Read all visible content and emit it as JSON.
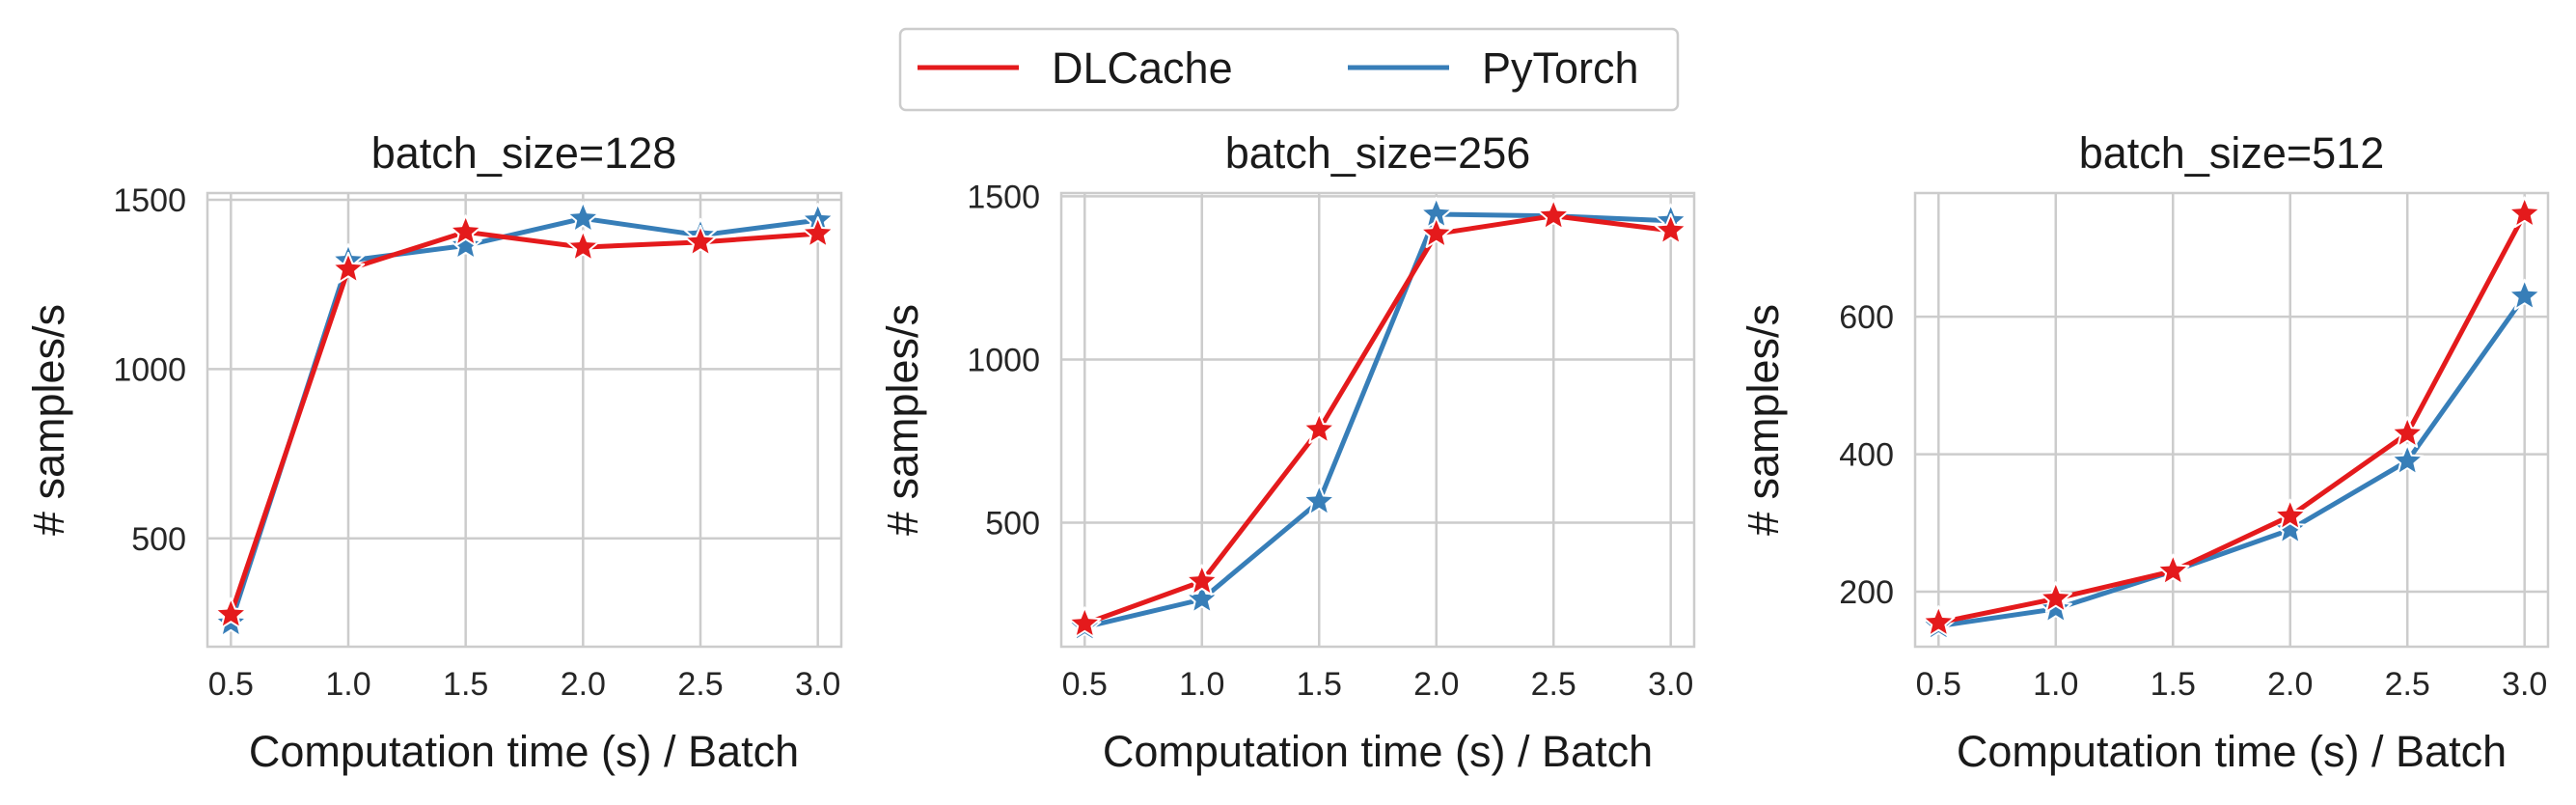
{
  "legend": {
    "entries": [
      {
        "name": "DLCache",
        "color": "#e41a1c"
      },
      {
        "name": "PyTorch",
        "color": "#377eb8"
      }
    ]
  },
  "chart_data": [
    {
      "type": "line",
      "title": "batch_size=128",
      "xlabel": "Computation time (s) / Batch",
      "ylabel": "# samples/s",
      "x": [
        0.5,
        1.0,
        1.5,
        2.0,
        2.5,
        3.0
      ],
      "xlim": [
        0.4,
        3.1
      ],
      "ylim": [
        180,
        1520
      ],
      "xticks": [
        "0.5",
        "1.0",
        "1.5",
        "2.0",
        "2.5",
        "3.0"
      ],
      "yticks": [
        500,
        1000,
        1500
      ],
      "grid": true,
      "marker": "star",
      "series": [
        {
          "name": "DLCache",
          "values": [
            275,
            1295,
            1405,
            1360,
            1375,
            1400
          ]
        },
        {
          "name": "PyTorch",
          "values": [
            250,
            1320,
            1365,
            1445,
            1395,
            1440
          ]
        }
      ]
    },
    {
      "type": "line",
      "title": "batch_size=256",
      "xlabel": "Computation time (s) / Batch",
      "ylabel": "# samples/s",
      "x": [
        0.5,
        1.0,
        1.5,
        2.0,
        2.5,
        3.0
      ],
      "xlim": [
        0.4,
        3.1
      ],
      "ylim": [
        120,
        1510
      ],
      "xticks": [
        "0.5",
        "1.0",
        "1.5",
        "2.0",
        "2.5",
        "3.0"
      ],
      "yticks": [
        500,
        1000,
        1500
      ],
      "grid": true,
      "marker": "star",
      "series": [
        {
          "name": "DLCache",
          "values": [
            190,
            320,
            785,
            1385,
            1440,
            1395
          ]
        },
        {
          "name": "PyTorch",
          "values": [
            180,
            265,
            565,
            1445,
            1440,
            1425
          ]
        }
      ]
    },
    {
      "type": "line",
      "title": "batch_size=512",
      "xlabel": "Computation time (s) / Batch",
      "ylabel": "# samples/s",
      "x": [
        0.5,
        1.0,
        1.5,
        2.0,
        2.5,
        3.0
      ],
      "xlim": [
        0.4,
        3.1
      ],
      "ylim": [
        120,
        780
      ],
      "xticks": [
        "0.5",
        "1.0",
        "1.5",
        "2.0",
        "2.5",
        "3.0"
      ],
      "yticks": [
        200,
        400,
        600
      ],
      "grid": true,
      "marker": "star",
      "series": [
        {
          "name": "DLCache",
          "values": [
            155,
            190,
            230,
            310,
            430,
            750
          ]
        },
        {
          "name": "PyTorch",
          "values": [
            150,
            175,
            230,
            290,
            390,
            630
          ]
        }
      ]
    }
  ]
}
